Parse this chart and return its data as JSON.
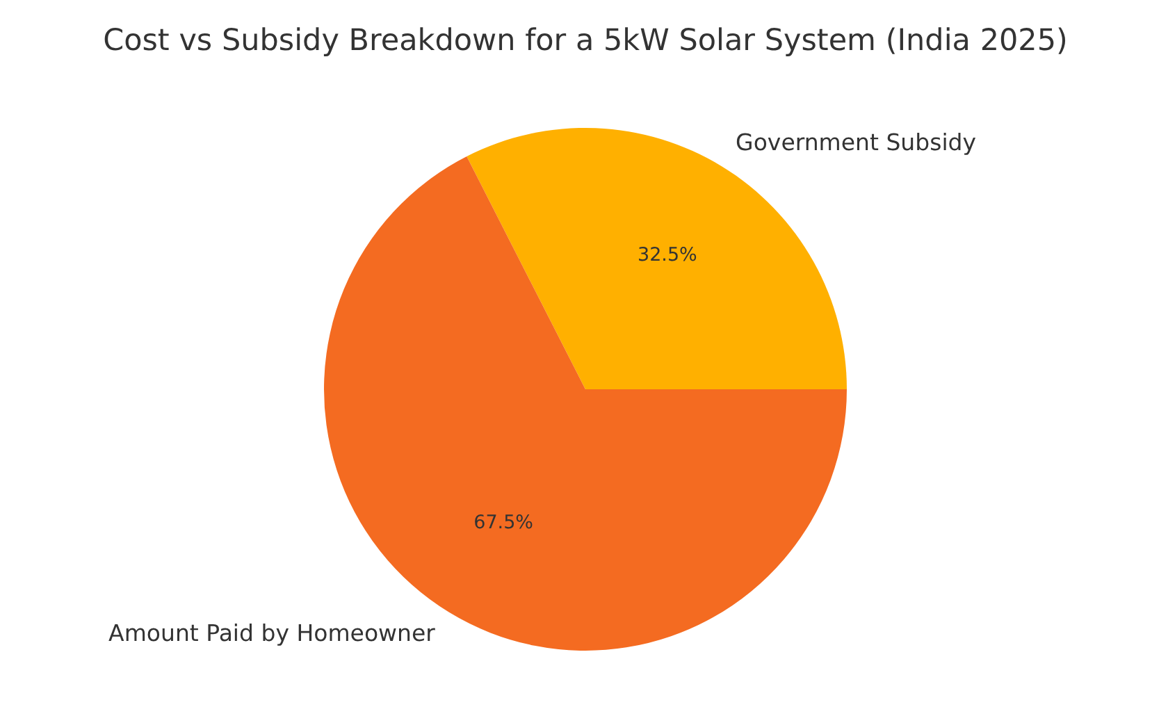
{
  "chart_data": {
    "type": "pie",
    "title": "Cost vs Subsidy Breakdown for a 5kW Solar System (India 2025)",
    "categories": [
      "Government Subsidy",
      "Amount Paid by Homeowner"
    ],
    "values": [
      32.5,
      67.5
    ],
    "colors": [
      "#ffb000",
      "#f46b21"
    ],
    "value_labels": [
      "32.5%",
      "67.5%"
    ]
  }
}
